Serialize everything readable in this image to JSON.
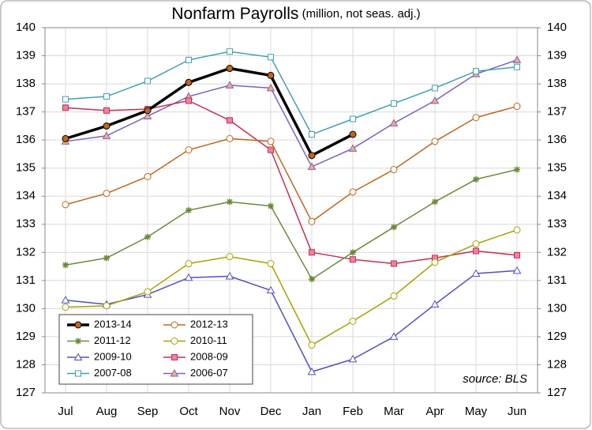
{
  "chart_data": {
    "type": "line",
    "title": "Nonfarm Payrolls",
    "subtitle": "(million, not seas. adj.)",
    "annotation": "source: BLS",
    "categories": [
      "Jul",
      "Aug",
      "Sep",
      "Oct",
      "Nov",
      "Dec",
      "Jan",
      "Feb",
      "Mar",
      "Apr",
      "May",
      "Jun"
    ],
    "ylim": [
      127,
      140
    ],
    "yticks": [
      127,
      128,
      129,
      130,
      131,
      132,
      133,
      134,
      135,
      136,
      137,
      138,
      139,
      140
    ],
    "y2lim": [
      127,
      140
    ],
    "y2ticks": [
      127,
      128,
      129,
      130,
      131,
      132,
      133,
      134,
      135,
      136,
      137,
      138,
      139,
      140
    ],
    "grid": true,
    "legend": "lower left",
    "series": [
      {
        "name": "2013-14",
        "color": "#000000",
        "marker": "circle",
        "marker_fill": "#c0661a",
        "values": [
          136.05,
          136.5,
          137.05,
          138.05,
          138.55,
          138.3,
          135.45,
          136.2,
          null,
          null,
          null,
          null
        ]
      },
      {
        "name": "2012-13",
        "color": "#c0661a",
        "marker": "circle",
        "marker_fill": "#ffffff",
        "values": [
          133.7,
          134.1,
          134.7,
          135.65,
          136.05,
          135.95,
          133.1,
          134.15,
          134.95,
          135.95,
          136.8,
          137.2
        ]
      },
      {
        "name": "2011-12",
        "color": "#6b8a3a",
        "marker": "plus",
        "marker_fill": "#d08020",
        "values": [
          131.55,
          131.8,
          132.55,
          133.5,
          133.8,
          133.65,
          131.05,
          132.0,
          132.9,
          133.8,
          134.6,
          134.95
        ]
      },
      {
        "name": "2010-11",
        "color": "#a8a000",
        "marker": "circle",
        "marker_fill": "#ffffff",
        "values": [
          130.05,
          130.1,
          130.6,
          131.6,
          131.85,
          131.6,
          128.7,
          129.55,
          130.45,
          131.65,
          132.3,
          132.8
        ]
      },
      {
        "name": "2009-10",
        "color": "#5050c0",
        "marker": "triangle",
        "marker_fill": "#ffffff",
        "values": [
          130.3,
          130.15,
          130.5,
          131.1,
          131.15,
          130.65,
          127.75,
          128.2,
          129.0,
          130.15,
          131.25,
          131.35
        ]
      },
      {
        "name": "2008-09",
        "color": "#c03050",
        "marker": "square",
        "marker_fill": "#f080a0",
        "values": [
          137.15,
          137.05,
          137.1,
          137.4,
          136.7,
          135.65,
          132.0,
          131.75,
          131.6,
          131.8,
          132.05,
          131.9
        ]
      },
      {
        "name": "2007-08",
        "color": "#40a0b0",
        "marker": "square",
        "marker_fill": "#ffffff",
        "values": [
          137.45,
          137.55,
          138.1,
          138.85,
          139.15,
          138.95,
          136.2,
          136.75,
          137.3,
          137.85,
          138.45,
          138.6
        ]
      },
      {
        "name": "2006-07",
        "color": "#8060c0",
        "marker": "triangle",
        "marker_fill": "#f0b070",
        "values": [
          135.95,
          136.15,
          136.85,
          137.55,
          137.95,
          137.85,
          135.05,
          135.7,
          136.6,
          137.4,
          138.35,
          138.85
        ]
      }
    ]
  }
}
